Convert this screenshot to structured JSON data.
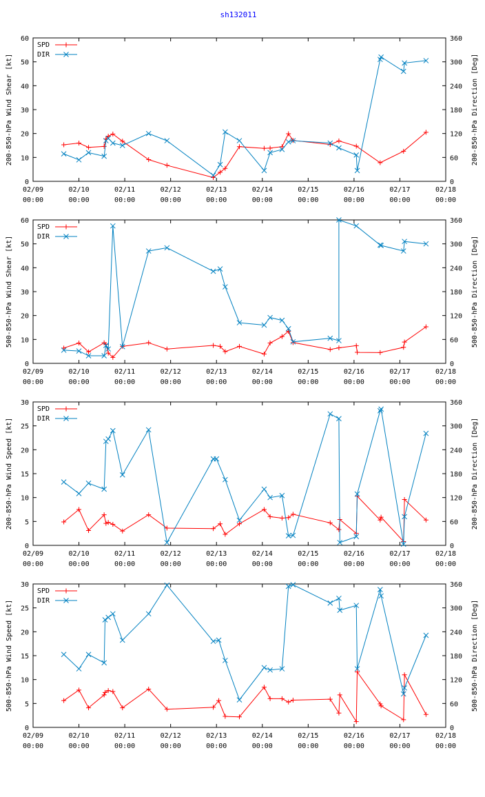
{
  "title": "sh132011",
  "colors": {
    "spd": "#ff0000",
    "dir": "#0080c0",
    "axis": "#000000"
  },
  "legend": {
    "spd": "SPD",
    "dir": "DIR"
  },
  "x_ticks": [
    {
      "date": "02/09",
      "time": "00:00"
    },
    {
      "date": "02/10",
      "time": "00:00"
    },
    {
      "date": "02/11",
      "time": "00:00"
    },
    {
      "date": "02/12",
      "time": "00:00"
    },
    {
      "date": "02/13",
      "time": "00:00"
    },
    {
      "date": "02/14",
      "time": "00:00"
    },
    {
      "date": "02/15",
      "time": "00:00"
    },
    {
      "date": "02/16",
      "time": "00:00"
    },
    {
      "date": "02/17",
      "time": "00:00"
    },
    {
      "date": "02/18",
      "time": "00:00"
    }
  ],
  "chart_data": [
    {
      "type": "line",
      "ylabel": "200-850-hPa Wind Shear [kt]",
      "y2label": "200-850-hPa Direction [Deg]",
      "xlim": [
        0,
        9
      ],
      "ylim": [
        0,
        60
      ],
      "y2lim": [
        0,
        360
      ],
      "y_ticks": [
        0,
        10,
        20,
        30,
        40,
        50,
        60
      ],
      "y2_ticks": [
        0,
        60,
        120,
        180,
        240,
        300,
        360
      ],
      "series": [
        {
          "name": "SPD",
          "axis": "left",
          "x": [
            0.67,
            1.0,
            1.21,
            1.55,
            1.59,
            1.64,
            1.74,
            1.95,
            2.52,
            2.92,
            3.93,
            4.08,
            4.19,
            4.5,
            5.04,
            5.17,
            5.43,
            5.57,
            5.67,
            6.48,
            6.67,
            7.05,
            7.57,
            8.08,
            8.57
          ],
          "y": [
            15.3,
            16.0,
            14.2,
            14.6,
            17.7,
            18.9,
            19.8,
            16.8,
            9.1,
            6.7,
            1.6,
            3.8,
            5.4,
            14.5,
            13.8,
            13.9,
            14.5,
            19.9,
            17.1,
            15.4,
            16.9,
            14.7,
            7.8,
            12.6,
            20.5
          ]
        },
        {
          "name": "DIR",
          "axis": "right",
          "x": [
            0.67,
            1.0,
            1.21,
            1.55,
            1.59,
            1.64,
            1.74,
            1.95,
            2.52,
            2.92,
            3.93,
            4.08,
            4.19,
            4.5,
            5.04,
            5.17,
            5.43,
            5.57,
            5.67,
            6.48,
            6.67,
            7.05,
            7.07,
            7.57,
            7.59,
            8.08,
            8.1,
            8.57
          ],
          "y": [
            69,
            54,
            72,
            63,
            102,
            108,
            96,
            90,
            120,
            102,
            15,
            42,
            124,
            102,
            27,
            72,
            80,
            99,
            102,
            96,
            84,
            66,
            27,
            306,
            312,
            276,
            297,
            303
          ]
        }
      ]
    },
    {
      "type": "line",
      "ylabel": "500-850-hPa Wind Shear [kt]",
      "y2label": "500-850-hPa Direction [Deg]",
      "xlim": [
        0,
        9
      ],
      "ylim": [
        0,
        60
      ],
      "y2lim": [
        0,
        360
      ],
      "y_ticks": [
        0,
        10,
        20,
        30,
        40,
        50,
        60
      ],
      "y2_ticks": [
        0,
        60,
        120,
        180,
        240,
        300,
        360
      ],
      "series": [
        {
          "name": "SPD",
          "axis": "left",
          "x": [
            0.67,
            1.0,
            1.21,
            1.55,
            1.59,
            1.64,
            1.74,
            1.95,
            2.52,
            2.92,
            3.93,
            4.08,
            4.19,
            4.5,
            5.04,
            5.17,
            5.43,
            5.57,
            5.67,
            6.48,
            6.67,
            7.05,
            7.07,
            7.57,
            8.08,
            8.1,
            8.57
          ],
          "y": [
            6.4,
            8.5,
            4.8,
            8.6,
            7.9,
            4.3,
            2.5,
            7.1,
            8.6,
            6.0,
            7.5,
            7.1,
            4.9,
            7.1,
            3.9,
            8.5,
            11.2,
            13.4,
            8.7,
            5.8,
            6.5,
            7.4,
            4.6,
            4.5,
            6.7,
            8.9,
            15.3
          ]
        },
        {
          "name": "DIR",
          "axis": "right",
          "x": [
            0.67,
            1.0,
            1.21,
            1.55,
            1.59,
            1.64,
            1.74,
            1.95,
            2.52,
            2.92,
            3.93,
            4.08,
            4.19,
            4.5,
            5.04,
            5.17,
            5.43,
            5.57,
            5.67,
            6.48,
            6.67,
            6.67,
            7.05,
            7.57,
            7.59,
            8.08,
            8.1,
            8.57
          ],
          "y": [
            33,
            31,
            19,
            19,
            45,
            36,
            345,
            42,
            282,
            290,
            231,
            237,
            192,
            102,
            96,
            115,
            108,
            87,
            54,
            63,
            57,
            360,
            345,
            297,
            296,
            282,
            306,
            300
          ]
        }
      ]
    },
    {
      "type": "line",
      "ylabel": "200-850-hPa Wind Speed [kt]",
      "y2label": "200-850-hPa Direction [Deg]",
      "xlim": [
        0,
        9
      ],
      "ylim": [
        0,
        30
      ],
      "y2lim": [
        0,
        360
      ],
      "y_ticks": [
        0,
        5,
        10,
        15,
        20,
        25,
        30
      ],
      "y2_ticks": [
        0,
        60,
        120,
        180,
        240,
        300,
        360
      ],
      "series": [
        {
          "name": "SPD",
          "axis": "left",
          "x": [
            0.67,
            1.0,
            1.21,
            1.55,
            1.59,
            1.64,
            1.74,
            1.95,
            2.52,
            2.92,
            3.93,
            4.08,
            4.19,
            4.5,
            5.04,
            5.17,
            5.43,
            5.57,
            5.67,
            6.48,
            6.67,
            6.69,
            7.05,
            7.07,
            7.57,
            7.59,
            8.08,
            8.1,
            8.57
          ],
          "y": [
            4.9,
            7.5,
            3.1,
            6.4,
            4.6,
            4.8,
            4.4,
            3.0,
            6.4,
            3.6,
            3.5,
            4.5,
            2.3,
            4.5,
            7.5,
            6.0,
            5.7,
            5.8,
            6.5,
            4.7,
            3.3,
            5.4,
            2.5,
            10.3,
            5.3,
            5.9,
            0.8,
            9.6,
            5.3
          ]
        },
        {
          "name": "DIR",
          "axis": "right",
          "x": [
            0.67,
            1.0,
            1.21,
            1.55,
            1.59,
            1.64,
            1.74,
            1.95,
            2.52,
            2.92,
            3.93,
            4.0,
            4.19,
            4.5,
            5.04,
            5.17,
            5.43,
            5.57,
            5.67,
            6.48,
            6.67,
            6.69,
            7.05,
            7.07,
            7.57,
            7.59,
            8.08,
            8.1,
            8.57
          ],
          "y": [
            159,
            130,
            156,
            141,
            261,
            267,
            288,
            177,
            290,
            7,
            217,
            217,
            165,
            63,
            141,
            120,
            125,
            24,
            25,
            330,
            318,
            7,
            22,
            129,
            338,
            342,
            3,
            72,
            281
          ]
        }
      ]
    },
    {
      "type": "line",
      "ylabel": "500-850-hPa Wind Speed [kt]",
      "y2label": "500-850-hPa Direction [Deg]",
      "xlim": [
        0,
        9
      ],
      "ylim": [
        0,
        30
      ],
      "y2lim": [
        0,
        360
      ],
      "y_ticks": [
        0,
        5,
        10,
        15,
        20,
        25,
        30
      ],
      "y2_ticks": [
        0,
        60,
        120,
        180,
        240,
        300,
        360
      ],
      "series": [
        {
          "name": "SPD",
          "axis": "left",
          "x": [
            0.67,
            1.0,
            1.21,
            1.55,
            1.57,
            1.64,
            1.74,
            1.95,
            2.52,
            2.92,
            3.93,
            4.05,
            4.19,
            4.5,
            5.04,
            5.17,
            5.43,
            5.57,
            5.67,
            6.48,
            6.67,
            6.69,
            7.05,
            7.07,
            7.57,
            7.59,
            8.08,
            8.1,
            8.57
          ],
          "y": [
            5.6,
            7.8,
            4.1,
            6.8,
            7.3,
            7.7,
            7.5,
            4.1,
            8.0,
            3.8,
            4.2,
            5.6,
            2.3,
            2.2,
            8.4,
            6.0,
            6.0,
            5.3,
            5.7,
            5.9,
            3.0,
            6.8,
            1.2,
            11.6,
            4.9,
            4.5,
            1.6,
            11.0,
            2.7
          ]
        },
        {
          "name": "DIR",
          "axis": "right",
          "x": [
            0.67,
            1.0,
            1.21,
            1.55,
            1.57,
            1.64,
            1.74,
            1.95,
            2.52,
            2.92,
            3.93,
            4.05,
            4.19,
            4.5,
            5.04,
            5.17,
            5.43,
            5.57,
            5.67,
            6.48,
            6.67,
            6.69,
            7.05,
            7.07,
            7.57,
            7.59,
            8.08,
            8.1,
            8.57
          ],
          "y": [
            183,
            147,
            183,
            162,
            270,
            276,
            285,
            219,
            285,
            357,
            216,
            219,
            168,
            69,
            150,
            144,
            147,
            354,
            358,
            312,
            324,
            294,
            306,
            147,
            346,
            330,
            84,
            99,
            231
          ]
        }
      ]
    }
  ]
}
